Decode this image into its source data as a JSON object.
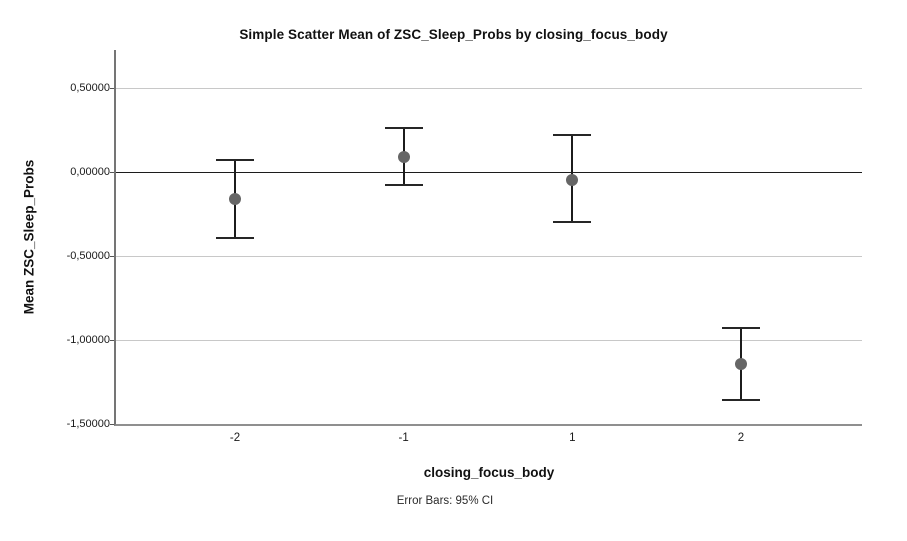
{
  "chart_data": {
    "type": "scatter",
    "title": "Simple Scatter Mean of ZSC_Sleep_Probs by closing_focus_body",
    "xlabel": "closing_focus_body",
    "ylabel": "Mean ZSC_Sleep_Probs",
    "footnote": "Error Bars: 95% CI",
    "decimal_separator": ",",
    "categories": [
      "-2",
      "-1",
      "1",
      "2"
    ],
    "series": [
      {
        "name": "Mean ZSC_Sleep_Probs",
        "means": [
          -0.16,
          0.09,
          -0.05,
          -1.14
        ],
        "ci_low": [
          -0.39,
          -0.08,
          -0.3,
          -1.36
        ],
        "ci_high": [
          0.07,
          0.26,
          0.22,
          -0.93
        ]
      }
    ],
    "y_ticks": [
      {
        "value": 0.5,
        "label": "0,50000"
      },
      {
        "value": 0.0,
        "label": "0,00000"
      },
      {
        "value": -0.5,
        "label": "-0,50000"
      },
      {
        "value": -1.0,
        "label": "-1,00000"
      },
      {
        "value": -1.5,
        "label": "-1,50000"
      }
    ],
    "ylim": [
      -1.5,
      0.73
    ],
    "grid": "horizontal-at-ticks",
    "zero_line": true,
    "legend": "none",
    "colors": {
      "background": "#ffffff",
      "gridline": "#c8c8c8",
      "zero_line": "#1c1c1c",
      "axis": "#808080",
      "error_bar": "#1c1c1c",
      "marker": "#666666",
      "text": "#111111"
    }
  }
}
